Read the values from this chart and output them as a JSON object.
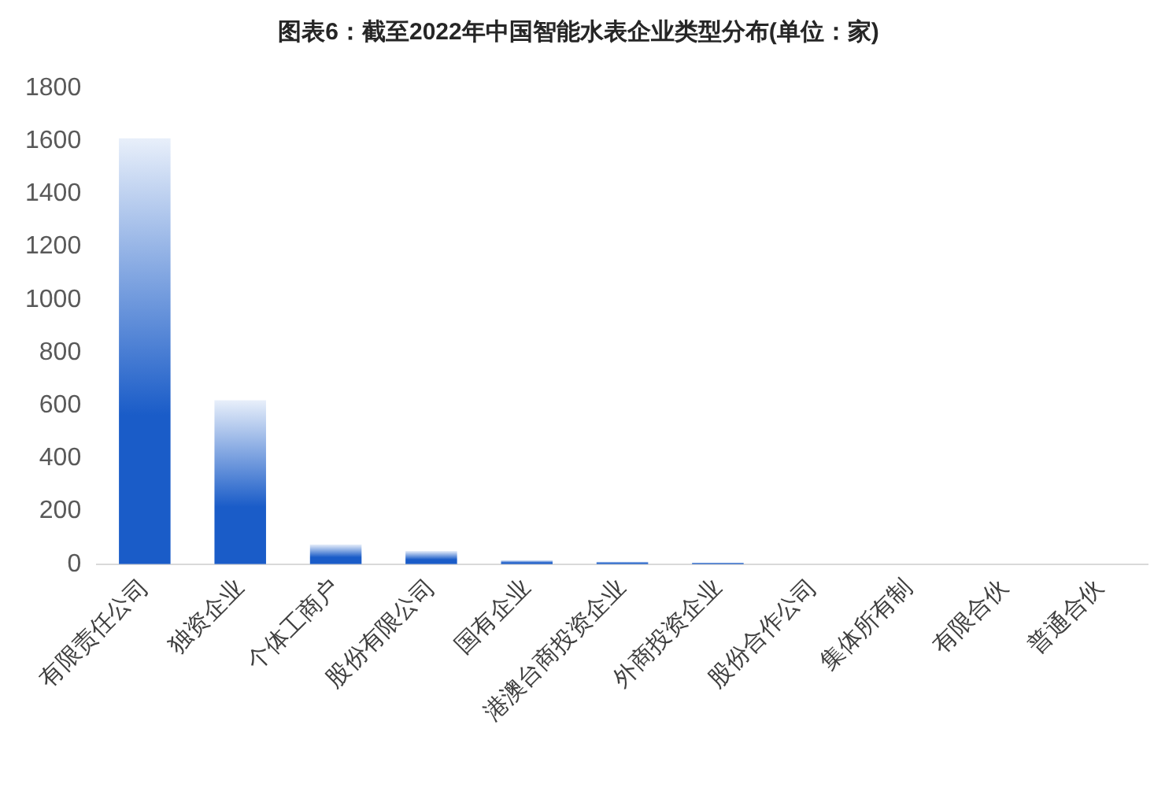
{
  "chart_data": {
    "type": "bar",
    "title": "图表6：截至2022年中国智能水表企业类型分布(单位：家)",
    "categories": [
      "有限责任公司",
      "独资企业",
      "个体工商户",
      "股份有限公司",
      "国有企业",
      "港澳台商投资企业",
      "外商投资企业",
      "股份合作公司",
      "集体所有制",
      "有限合伙",
      "普通合伙"
    ],
    "values": [
      1610,
      620,
      75,
      50,
      15,
      10,
      5,
      0,
      0,
      0,
      0
    ],
    "color": "#1a5cc8",
    "ylim": [
      0,
      1800
    ],
    "yticks": [
      0,
      200,
      400,
      600,
      800,
      1000,
      1200,
      1400,
      1600,
      1800
    ]
  }
}
